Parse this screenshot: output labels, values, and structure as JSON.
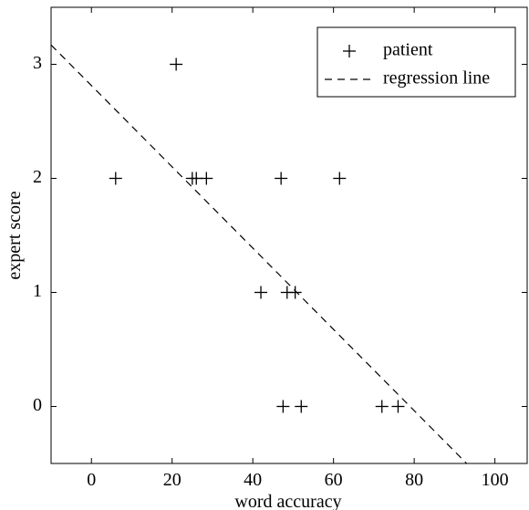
{
  "chart_data": {
    "type": "scatter",
    "title": "",
    "xlabel": "word accuracy",
    "ylabel": "expert score",
    "xlim": [
      -10,
      108
    ],
    "ylim": [
      -0.5,
      3.5
    ],
    "xticks": [
      0,
      20,
      40,
      60,
      80,
      100
    ],
    "yticks": [
      0,
      1,
      2,
      3
    ],
    "grid": false,
    "legend_position": "top-right",
    "series": [
      {
        "name": "patient",
        "marker": "plus",
        "points": [
          {
            "x": 6,
            "y": 2
          },
          {
            "x": 21,
            "y": 3
          },
          {
            "x": 25,
            "y": 2
          },
          {
            "x": 26,
            "y": 2
          },
          {
            "x": 28.5,
            "y": 2
          },
          {
            "x": 47,
            "y": 2
          },
          {
            "x": 61.5,
            "y": 2
          },
          {
            "x": 42,
            "y": 1
          },
          {
            "x": 48.5,
            "y": 1
          },
          {
            "x": 50.5,
            "y": 1
          },
          {
            "x": 47.5,
            "y": 0
          },
          {
            "x": 52,
            "y": 0
          },
          {
            "x": 72,
            "y": 0
          },
          {
            "x": 76,
            "y": 0
          }
        ]
      },
      {
        "name": "regression line",
        "style": "dashed",
        "line": {
          "x0": -10,
          "y0": 3.17,
          "x1": 93,
          "y1": -0.5
        }
      }
    ]
  }
}
